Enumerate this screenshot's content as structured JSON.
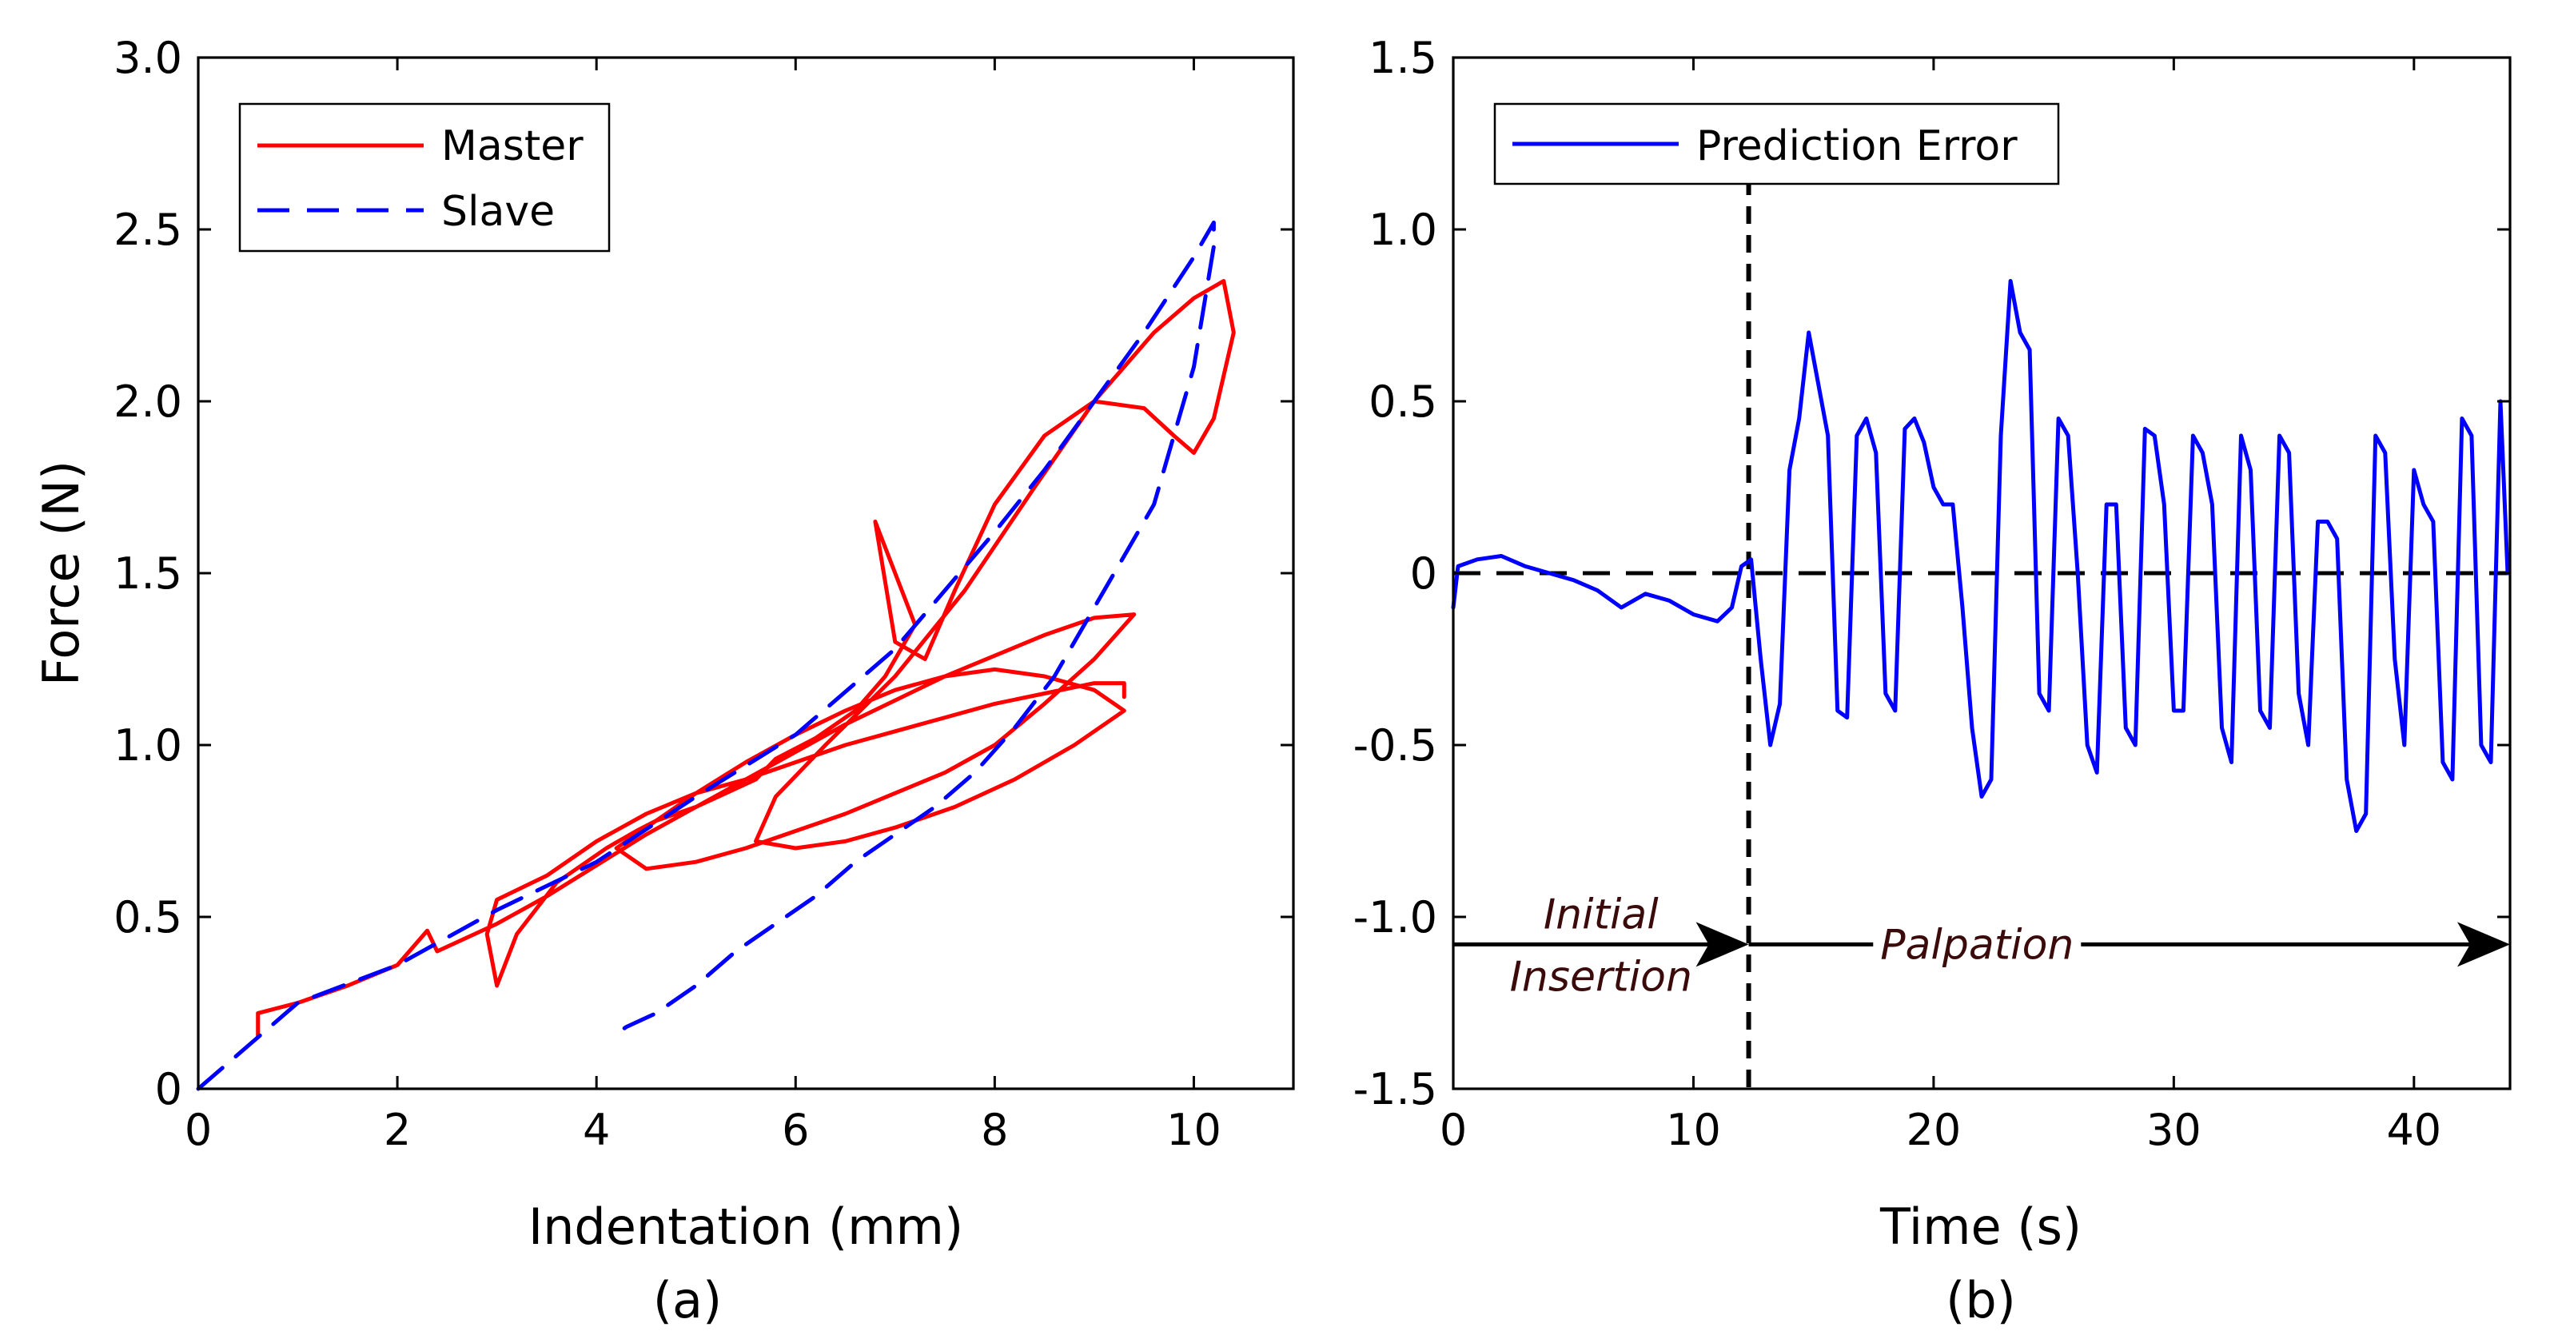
{
  "chart_data": [
    {
      "type": "line",
      "caption": "(a)",
      "xlabel": "Indentation (mm)",
      "ylabel": "Force (N)",
      "xlim": [
        0,
        11
      ],
      "ylim": [
        0,
        3.0
      ],
      "xticks": [
        "0",
        "2",
        "4",
        "6",
        "8",
        "10"
      ],
      "yticks": [
        "0",
        "0.5",
        "1.0",
        "1.5",
        "2.0",
        "2.5",
        "3.0"
      ],
      "legend_position": "top-left",
      "series": [
        {
          "name": "Master",
          "color": "#ff0000",
          "style": "solid",
          "x": [
            0.6,
            0.6,
            1.0,
            1.5,
            2.0,
            2.3,
            2.4,
            3.0,
            3.5,
            4.0,
            4.5,
            5.0,
            5.5,
            6.0,
            6.5,
            7.0,
            7.5,
            8.0,
            8.5,
            9.0,
            9.4,
            9.0,
            8.5,
            8.0,
            7.5,
            7.0,
            6.5,
            6.0,
            5.5,
            5.0,
            4.5,
            4.2,
            4.6,
            5.0,
            5.5,
            6.0,
            6.5,
            7.0,
            7.5,
            8.0,
            8.5,
            9.0,
            9.3,
            8.8,
            8.2,
            7.6,
            7.0,
            6.5,
            6.0,
            5.6,
            5.8,
            6.3,
            7.0,
            7.7,
            8.4,
            9.0,
            9.6,
            10.0,
            10.3,
            10.4,
            10.2,
            10.0,
            9.8,
            9.5,
            9.0,
            8.5,
            8.0,
            7.6,
            7.3,
            7.0,
            6.8,
            7.0,
            7.2,
            6.9,
            6.6,
            6.2,
            5.8,
            5.6,
            5.3,
            5.0,
            4.8,
            4.6,
            4.4,
            4.1,
            3.6,
            3.2,
            3.0,
            2.9,
            3.0,
            3.5,
            4.0,
            4.5,
            5.0,
            5.5,
            6.0,
            6.5,
            7.0,
            7.5,
            8.0,
            8.5,
            9.0,
            9.3,
            9.3
          ],
          "y": [
            0.15,
            0.22,
            0.25,
            0.3,
            0.36,
            0.46,
            0.4,
            0.48,
            0.56,
            0.65,
            0.74,
            0.82,
            0.9,
            0.98,
            1.06,
            1.13,
            1.2,
            1.26,
            1.32,
            1.37,
            1.38,
            1.25,
            1.12,
            1.0,
            0.92,
            0.86,
            0.8,
            0.75,
            0.7,
            0.66,
            0.64,
            0.7,
            0.78,
            0.86,
            0.95,
            1.03,
            1.1,
            1.16,
            1.2,
            1.22,
            1.2,
            1.16,
            1.1,
            1.0,
            0.9,
            0.82,
            0.76,
            0.72,
            0.7,
            0.72,
            0.85,
            1.0,
            1.2,
            1.45,
            1.75,
            2.0,
            2.2,
            2.3,
            2.35,
            2.2,
            1.95,
            1.85,
            1.9,
            1.98,
            2.0,
            1.9,
            1.7,
            1.45,
            1.25,
            1.3,
            1.65,
            1.5,
            1.35,
            1.2,
            1.1,
            1.02,
            0.96,
            0.9,
            0.86,
            0.82,
            0.8,
            0.78,
            0.75,
            0.7,
            0.6,
            0.45,
            0.3,
            0.45,
            0.55,
            0.62,
            0.72,
            0.8,
            0.86,
            0.9,
            0.95,
            1.0,
            1.04,
            1.08,
            1.12,
            1.15,
            1.18,
            1.18,
            1.14
          ]
        },
        {
          "name": "Slave",
          "color": "#0000ff",
          "style": "dashed",
          "x": [
            0.0,
            1.0,
            2.0,
            3.0,
            4.0,
            5.0,
            6.0,
            7.0,
            7.5,
            8.0,
            8.5,
            9.0,
            9.5,
            10.0,
            10.2,
            10.2,
            10.0,
            9.8,
            9.6,
            9.3,
            9.0,
            8.6,
            8.2,
            7.8,
            7.4,
            7.0,
            6.6,
            6.2,
            5.8,
            5.4,
            5.0,
            4.6,
            4.3,
            4.2
          ],
          "y": [
            0.0,
            0.25,
            0.36,
            0.52,
            0.66,
            0.85,
            1.03,
            1.28,
            1.45,
            1.62,
            1.8,
            2.0,
            2.2,
            2.42,
            2.52,
            2.45,
            2.1,
            1.9,
            1.7,
            1.55,
            1.4,
            1.2,
            1.05,
            0.92,
            0.82,
            0.74,
            0.66,
            0.56,
            0.48,
            0.4,
            0.3,
            0.22,
            0.18,
            0.16
          ]
        }
      ]
    },
    {
      "type": "line",
      "caption": "(b)",
      "xlabel": "Time (s)",
      "ylabel": "",
      "xlim": [
        0,
        44
      ],
      "ylim": [
        -1.5,
        1.5
      ],
      "xticks": [
        "0",
        "10",
        "20",
        "30",
        "40"
      ],
      "yticks": [
        "-1.5",
        "-1.0",
        "-0.5",
        "0",
        "0.5",
        "1.0",
        "1.5"
      ],
      "legend_position": "top-left",
      "series": [
        {
          "name": "Prediction Error",
          "color": "#0000ff",
          "style": "solid",
          "x": [
            0.0,
            0.2,
            1.0,
            2.0,
            3.0,
            4.0,
            5.0,
            6.0,
            7.0,
            8.0,
            9.0,
            10.0,
            11.0,
            11.6,
            12.0,
            12.4,
            12.8,
            13.2,
            13.6,
            14.0,
            14.4,
            14.8,
            15.2,
            15.6,
            16.0,
            16.4,
            16.8,
            17.2,
            17.6,
            18.0,
            18.4,
            18.8,
            19.2,
            19.6,
            20.0,
            20.4,
            20.8,
            21.2,
            21.6,
            22.0,
            22.4,
            22.8,
            23.2,
            23.6,
            24.0,
            24.4,
            24.8,
            25.2,
            25.6,
            26.0,
            26.4,
            26.8,
            27.2,
            27.6,
            28.0,
            28.4,
            28.8,
            29.2,
            29.6,
            30.0,
            30.4,
            30.8,
            31.2,
            31.6,
            32.0,
            32.4,
            32.8,
            33.2,
            33.6,
            34.0,
            34.4,
            34.8,
            35.2,
            35.6,
            36.0,
            36.4,
            36.8,
            37.2,
            37.6,
            38.0,
            38.4,
            38.8,
            39.2,
            39.6,
            40.0,
            40.4,
            40.8,
            41.2,
            41.6,
            42.0,
            42.4,
            42.8,
            43.2,
            43.6,
            43.9
          ],
          "y": [
            -0.1,
            0.02,
            0.04,
            0.05,
            0.02,
            0.0,
            -0.02,
            -0.05,
            -0.1,
            -0.06,
            -0.08,
            -0.12,
            -0.14,
            -0.1,
            0.02,
            0.04,
            -0.25,
            -0.5,
            -0.38,
            0.3,
            0.45,
            0.7,
            0.55,
            0.4,
            -0.4,
            -0.42,
            0.4,
            0.45,
            0.35,
            -0.35,
            -0.4,
            0.42,
            0.45,
            0.38,
            0.25,
            0.2,
            0.2,
            -0.1,
            -0.45,
            -0.65,
            -0.6,
            0.4,
            0.85,
            0.7,
            0.65,
            -0.35,
            -0.4,
            0.45,
            0.4,
            0.0,
            -0.5,
            -0.58,
            0.2,
            0.2,
            -0.45,
            -0.5,
            0.42,
            0.4,
            0.2,
            -0.4,
            -0.4,
            0.4,
            0.35,
            0.2,
            -0.45,
            -0.55,
            0.4,
            0.3,
            -0.4,
            -0.45,
            0.4,
            0.35,
            -0.35,
            -0.5,
            0.15,
            0.15,
            0.1,
            -0.6,
            -0.75,
            -0.7,
            0.4,
            0.35,
            -0.25,
            -0.5,
            0.3,
            0.2,
            0.15,
            -0.55,
            -0.6,
            0.45,
            0.4,
            -0.5,
            -0.55,
            0.5,
            0.0
          ]
        }
      ],
      "reference_lines": [
        {
          "type": "horizontal",
          "y": 0,
          "style": "dashed",
          "color": "#000000"
        },
        {
          "type": "vertical",
          "x": 12.3,
          "style": "dashed",
          "color": "#000000"
        }
      ],
      "annotations": [
        {
          "text_lines": [
            "Initial",
            "Insertion"
          ],
          "color": "#3b0a0a",
          "arrow_from_x": 0,
          "arrow_to_x": 12.3,
          "arrow_y": -1.08
        },
        {
          "text_lines": [
            "Palpation"
          ],
          "color": "#3b0a0a",
          "arrow_from_x": 12.3,
          "arrow_to_x": 44,
          "arrow_y": -1.08
        }
      ]
    }
  ]
}
